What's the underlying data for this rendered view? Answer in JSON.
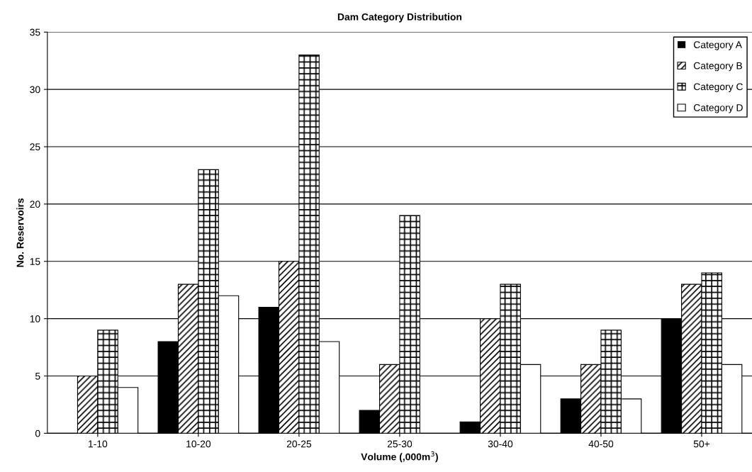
{
  "chart_data": {
    "type": "bar",
    "title": "Dam Category Distribution",
    "xlabel": "Volume (,000m$^{3}$)",
    "ylabel": "No. Reservoirs",
    "categories": [
      "1-10",
      "10-20",
      "20-25",
      "25-30",
      "30-40",
      "40-50",
      "50+"
    ],
    "series": [
      {
        "name": "Category A",
        "color": "#000000",
        "values": [
          0,
          8,
          11,
          2,
          1,
          3,
          10
        ]
      },
      {
        "name": "Category B",
        "color": "#000000",
        "values": [
          5,
          13,
          15,
          6,
          10,
          6,
          13
        ]
      },
      {
        "name": "Category C",
        "color": "#000000",
        "values": [
          9,
          23,
          33,
          19,
          13,
          9,
          14
        ]
      },
      {
        "name": "Category D",
        "color": "#ffffff",
        "values": [
          4,
          12,
          8,
          0,
          6,
          3,
          6
        ]
      }
    ],
    "ylim": [
      0,
      35
    ],
    "yticks": [
      0,
      5,
      10,
      15,
      20,
      25,
      30,
      35
    ],
    "grid": "y",
    "legend": "top right"
  }
}
